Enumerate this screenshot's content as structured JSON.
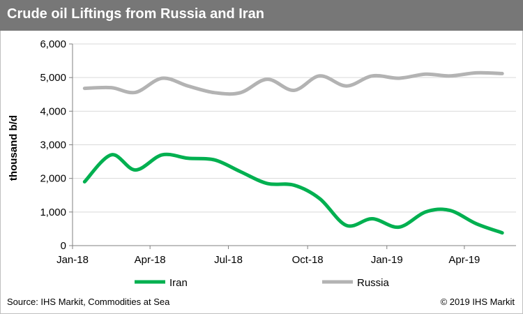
{
  "header": {
    "title": "Crude oil Liftings from Russia and Iran"
  },
  "footer": {
    "source": "Source: IHS Markit, Commodities at Sea",
    "copyright": "© 2019 IHS Markit"
  },
  "chart_data": {
    "type": "line",
    "title": "Crude oil Liftings from Russia and Iran",
    "xlabel": "",
    "ylabel": "thousand b/d",
    "ylim": [
      0,
      6000
    ],
    "yticks": [
      0,
      1000,
      2000,
      3000,
      4000,
      5000,
      6000
    ],
    "ytick_labels": [
      "0",
      "1,000",
      "2,000",
      "3,000",
      "4,000",
      "5,000",
      "6,000"
    ],
    "xlim": [
      "2018-01-01",
      "2019-05-31"
    ],
    "xticks": [
      "2018-01-01",
      "2018-04-01",
      "2018-07-01",
      "2018-10-01",
      "2019-01-01",
      "2019-04-01"
    ],
    "xtick_labels": [
      "Jan-18",
      "Apr-18",
      "Jul-18",
      "Oct-18",
      "Jan-19",
      "Apr-19"
    ],
    "grid": "horizontal",
    "legend": "bottom",
    "series": [
      {
        "name": "Iran",
        "color": "#00b050",
        "x": [
          "2018-01-15",
          "2018-02-15",
          "2018-03-15",
          "2018-04-15",
          "2018-05-15",
          "2018-06-15",
          "2018-07-15",
          "2018-08-15",
          "2018-09-15",
          "2018-10-15",
          "2018-11-15",
          "2018-12-15",
          "2019-01-15",
          "2019-02-15",
          "2019-03-15",
          "2019-04-15",
          "2019-05-15"
        ],
        "values": [
          1900,
          2700,
          2250,
          2700,
          2600,
          2550,
          2200,
          1850,
          1800,
          1400,
          600,
          800,
          550,
          1000,
          1050,
          650,
          380
        ]
      },
      {
        "name": "Russia",
        "color": "#b3b3b3",
        "x": [
          "2018-01-15",
          "2018-02-15",
          "2018-03-15",
          "2018-04-15",
          "2018-05-15",
          "2018-06-15",
          "2018-07-15",
          "2018-08-15",
          "2018-09-15",
          "2018-10-15",
          "2018-11-15",
          "2018-12-15",
          "2019-01-15",
          "2019-02-15",
          "2019-03-15",
          "2019-04-15",
          "2019-05-15"
        ],
        "values": [
          4680,
          4700,
          4560,
          4980,
          4750,
          4550,
          4550,
          4950,
          4620,
          5050,
          4750,
          5050,
          4980,
          5100,
          5050,
          5140,
          5120
        ]
      }
    ]
  }
}
